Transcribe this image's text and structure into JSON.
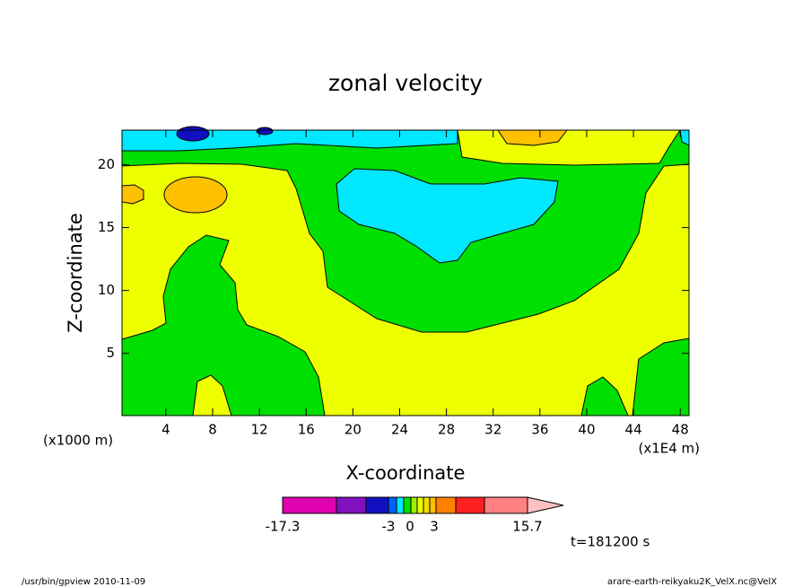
{
  "chart_data": {
    "type": "contour",
    "title": "zonal velocity",
    "xlabel": "X-coordinate",
    "ylabel": "Z-coordinate",
    "xunit": "(x1E4 m)",
    "yunit": "(x1000 m)",
    "xlim": [
      0.25,
      48.75
    ],
    "xticks": [
      4,
      8,
      12,
      16,
      20,
      24,
      28,
      32,
      36,
      40,
      44,
      48
    ],
    "ylim": [
      0.05,
      22.75
    ],
    "yticks": [
      5,
      10,
      15,
      20
    ],
    "annotation": "t=181200 s",
    "colorbar": {
      "colors": [
        "#e000b0",
        "#8010c0",
        "#1010c0",
        "#0060ff",
        "#00e8ff",
        "#00e000",
        "#a0f000",
        "#eeff00",
        "#f0e000",
        "#ffc000",
        "#ff8000",
        "#ff2020",
        "#ff8080",
        "#ffc0c0"
      ],
      "ticks": [
        -17.3,
        -3,
        0,
        3,
        15.7
      ]
    }
  },
  "footer": {
    "left": "/usr/bin/gpview  2010-11-09",
    "right": "arare-earth-reikyaku2K_VelX.nc@VelX"
  }
}
